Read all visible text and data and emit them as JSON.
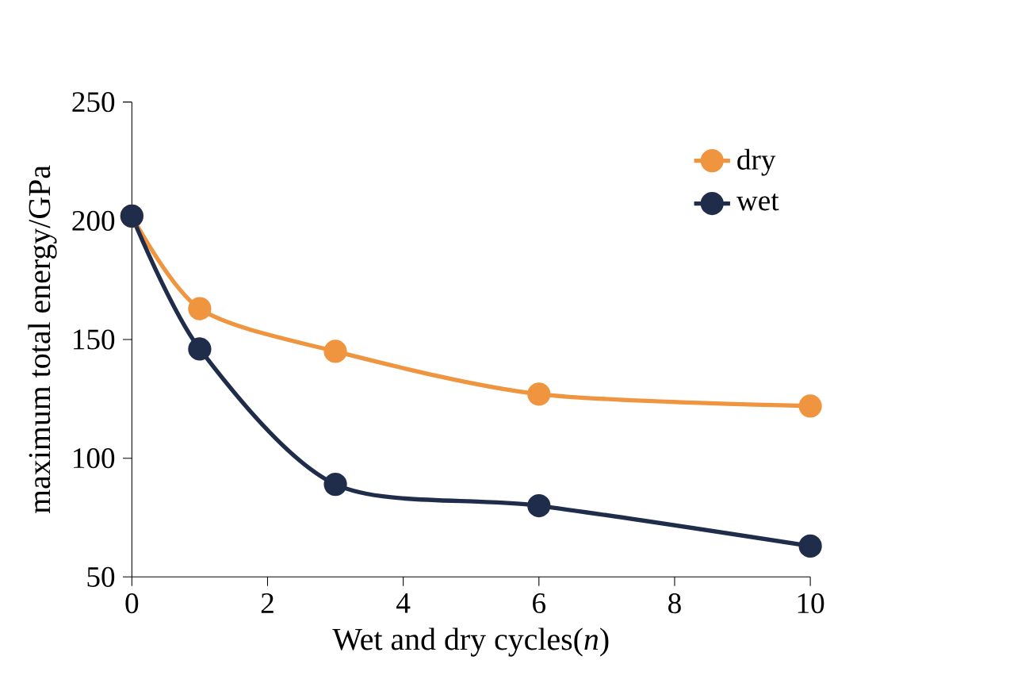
{
  "chart_data": {
    "type": "line",
    "xlabel": "Wet and dry cycles(*n*)",
    "ylabel": "maximum total energy/GPa",
    "x": [
      0,
      1,
      3,
      6,
      10
    ],
    "series": [
      {
        "name": "dry",
        "color": "#f0953f",
        "values": [
          202,
          163,
          145,
          127,
          122
        ]
      },
      {
        "name": "wet",
        "color": "#1f2d4b",
        "values": [
          202,
          146,
          89,
          80,
          63
        ]
      }
    ],
    "xlim": [
      0,
      10
    ],
    "ylim": [
      50,
      250
    ],
    "xticks": [
      0,
      2,
      4,
      6,
      8,
      10
    ],
    "yticks": [
      50,
      100,
      150,
      200,
      250
    ],
    "legend": "top right",
    "marker": "circle",
    "line_style": "solid"
  }
}
